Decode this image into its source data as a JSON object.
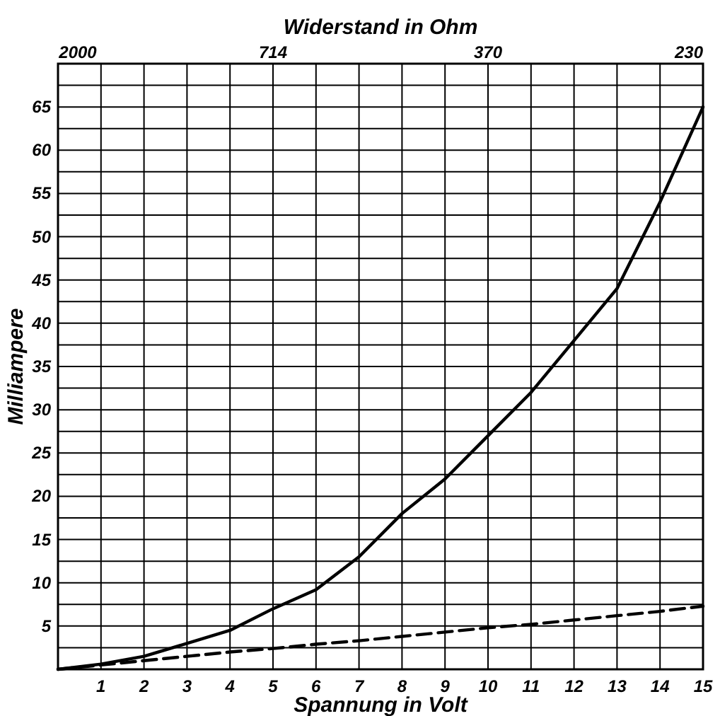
{
  "chart_data": {
    "type": "line",
    "xlabel": "Spannung in Volt",
    "ylabel": "Milliampere",
    "x2label": "Widerstand in Ohm",
    "x": [
      0,
      1,
      2,
      3,
      4,
      5,
      6,
      7,
      8,
      9,
      10,
      11,
      12,
      13,
      14,
      15
    ],
    "series": [
      {
        "color": "#000000",
        "line_style": "solid",
        "values": [
          0,
          0.6,
          1.5,
          3,
          4.5,
          7,
          9.2,
          13,
          18,
          22,
          27,
          32,
          38,
          44,
          54,
          65
        ]
      },
      {
        "color": "#000000",
        "line_style": "dashed",
        "values": [
          0,
          0.5,
          1,
          1.5,
          2,
          2.4,
          2.9,
          3.3,
          3.8,
          4.3,
          4.8,
          5.2,
          5.7,
          6.2,
          6.7,
          7.3
        ]
      }
    ],
    "xlim": [
      0,
      15
    ],
    "ylim": [
      0,
      70
    ],
    "xticks": [
      1,
      2,
      3,
      4,
      5,
      6,
      7,
      8,
      9,
      10,
      11,
      12,
      13,
      14,
      15
    ],
    "yticks": [
      {
        "value": 2.5,
        "label": null
      },
      5,
      {
        "value": 7.5,
        "label": null
      },
      10,
      {
        "value": 12.5,
        "label": null
      },
      15,
      {
        "value": 17.5,
        "label": null
      },
      20,
      {
        "value": 22.5,
        "label": null
      },
      25,
      {
        "value": 27.5,
        "label": null
      },
      30,
      {
        "value": 32.5,
        "label": null
      },
      35,
      {
        "value": 37.5,
        "label": null
      },
      40,
      {
        "value": 42.5,
        "label": null
      },
      45,
      {
        "value": 47.5,
        "label": null
      },
      50,
      {
        "value": 52.5,
        "label": null
      },
      55,
      {
        "value": 57.5,
        "label": null
      },
      60,
      {
        "value": 62.5,
        "label": null
      },
      65,
      {
        "value": 67.5,
        "label": null
      },
      {
        "value": 70,
        "label": null
      }
    ],
    "annotations": [
      "2000",
      "714",
      "370",
      "230"
    ],
    "grid": true,
    "marker": "none"
  }
}
